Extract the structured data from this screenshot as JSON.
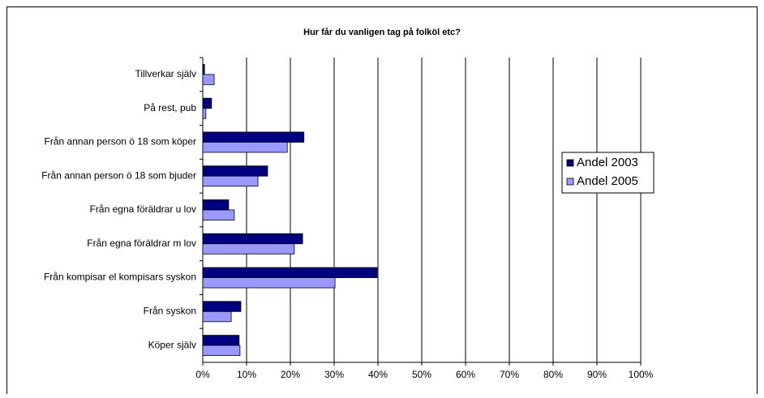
{
  "chart_data": {
    "type": "bar",
    "orientation": "horizontal",
    "title": "Hur får du vanligen tag på folköl etc?",
    "categories": [
      "Tillverkar själv",
      "På rest, pub",
      "Från annan person ö 18 som köper",
      "Från annan person ö 18 som bjuder",
      "Från egna föräldrar u lov",
      "Från egna föräldrar m lov",
      "Från kompisar el kompisars syskon",
      "Från syskon",
      "Köper själv"
    ],
    "series": [
      {
        "name": "Andel 2003",
        "color": "#000080",
        "values": [
          0.4,
          2.0,
          23.1,
          14.8,
          5.9,
          22.8,
          39.8,
          8.7,
          8.3
        ]
      },
      {
        "name": "Andel 2005",
        "color": "#9999ff",
        "values": [
          2.6,
          0.7,
          19.3,
          12.6,
          7.2,
          20.9,
          30.2,
          6.5,
          8.5
        ]
      }
    ],
    "xlim": [
      0,
      100
    ],
    "xticks": [
      {
        "value": 0,
        "label": "0%"
      },
      {
        "value": 10,
        "label": "10%"
      },
      {
        "value": 20,
        "label": "20%"
      },
      {
        "value": 30,
        "label": "30%"
      },
      {
        "value": 40,
        "label": "40%"
      },
      {
        "value": 50,
        "label": "50%"
      },
      {
        "value": 60,
        "label": "60%"
      },
      {
        "value": 70,
        "label": "70%"
      },
      {
        "value": 80,
        "label": "80%"
      },
      {
        "value": 90,
        "label": "90%"
      },
      {
        "value": 100,
        "label": "100%"
      }
    ],
    "grid": true,
    "legend": "right"
  }
}
